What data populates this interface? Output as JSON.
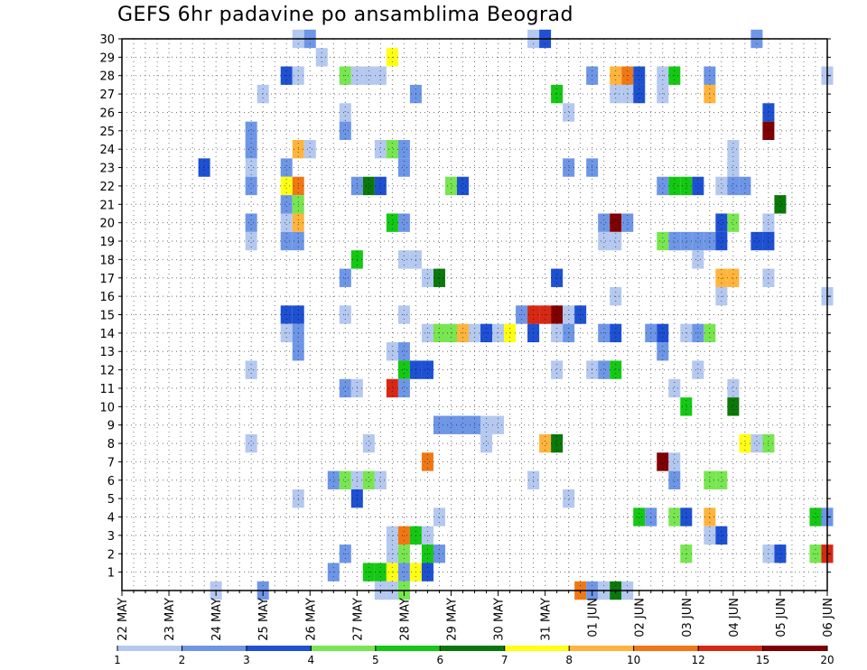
{
  "chart_data": {
    "type": "heatmap",
    "title": "GEFS 6hr padavine po ansamblima Beograd",
    "x_tick_labels": [
      "22 MAY",
      "23 MAY",
      "24 MAY",
      "25 MAY",
      "26 MAY",
      "27 MAY",
      "28 MAY",
      "29 MAY",
      "30 MAY",
      "31 MAY",
      "01 JUN",
      "02 JUN",
      "03 JUN",
      "04 JUN",
      "05 JUN",
      "06 JUN"
    ],
    "y_tick_labels": [
      "1",
      "2",
      "3",
      "4",
      "5",
      "6",
      "7",
      "8",
      "9",
      "10",
      "11",
      "12",
      "13",
      "14",
      "15",
      "16",
      "17",
      "18",
      "19",
      "20",
      "21",
      "22",
      "23",
      "24",
      "25",
      "26",
      "27",
      "28",
      "29",
      "30"
    ],
    "xlim_steps": [
      0,
      60
    ],
    "ylim_members": [
      0,
      30
    ],
    "x_unit": "6-hour step from 22 MAY 00Z",
    "grid": "dotted",
    "colorbar": {
      "boundaries": [
        "1",
        "2",
        "3",
        "4",
        "5",
        "6",
        "7",
        "8",
        "10",
        "12",
        "15",
        "20"
      ],
      "colors": [
        "#b4c8f0",
        "#6e96e6",
        "#1e50d2",
        "#78e650",
        "#14c814",
        "#0a780a",
        "#ffff14",
        "#ffb43c",
        "#f07814",
        "#d72814",
        "#800000"
      ]
    },
    "cells_note": "each cell = [step, member, color class 1..11]",
    "cells": [
      [
        15,
        30,
        1
      ],
      [
        16,
        30,
        2
      ],
      [
        35,
        30,
        1
      ],
      [
        36,
        30,
        3
      ],
      [
        54,
        30,
        2
      ],
      [
        17,
        29,
        1
      ],
      [
        23,
        29,
        7
      ],
      [
        14,
        28,
        3
      ],
      [
        15,
        28,
        1
      ],
      [
        19,
        28,
        4
      ],
      [
        20,
        28,
        1
      ],
      [
        21,
        28,
        1
      ],
      [
        22,
        28,
        1
      ],
      [
        40,
        28,
        2
      ],
      [
        42,
        28,
        8
      ],
      [
        43,
        28,
        9
      ],
      [
        44,
        28,
        3
      ],
      [
        46,
        28,
        1
      ],
      [
        47,
        28,
        5
      ],
      [
        50,
        28,
        2
      ],
      [
        60,
        28,
        1
      ],
      [
        12,
        27,
        1
      ],
      [
        25,
        27,
        2
      ],
      [
        37,
        27,
        5
      ],
      [
        42,
        27,
        1
      ],
      [
        43,
        27,
        1
      ],
      [
        44,
        27,
        3
      ],
      [
        46,
        27,
        1
      ],
      [
        50,
        27,
        8
      ],
      [
        19,
        26,
        1
      ],
      [
        38,
        26,
        1
      ],
      [
        55,
        26,
        3
      ],
      [
        11,
        25,
        2
      ],
      [
        19,
        25,
        2
      ],
      [
        55,
        25,
        11
      ],
      [
        11,
        24,
        2
      ],
      [
        15,
        24,
        8
      ],
      [
        16,
        24,
        1
      ],
      [
        22,
        24,
        1
      ],
      [
        23,
        24,
        4
      ],
      [
        24,
        24,
        2
      ],
      [
        52,
        24,
        1
      ],
      [
        38,
        23,
        2
      ],
      [
        52,
        23,
        1
      ],
      [
        7,
        23,
        3
      ],
      [
        11,
        23,
        1
      ],
      [
        14,
        23,
        2
      ],
      [
        24,
        23,
        2
      ],
      [
        40,
        23,
        2
      ],
      [
        52,
        23,
        1
      ],
      [
        11,
        22,
        2
      ],
      [
        14,
        22,
        7
      ],
      [
        15,
        22,
        9
      ],
      [
        20,
        22,
        2
      ],
      [
        21,
        22,
        6
      ],
      [
        22,
        22,
        3
      ],
      [
        28,
        22,
        4
      ],
      [
        29,
        22,
        3
      ],
      [
        46,
        22,
        2
      ],
      [
        47,
        22,
        5
      ],
      [
        48,
        22,
        5
      ],
      [
        49,
        22,
        3
      ],
      [
        51,
        22,
        1
      ],
      [
        52,
        22,
        2
      ],
      [
        53,
        22,
        2
      ],
      [
        14,
        21,
        2
      ],
      [
        15,
        21,
        4
      ],
      [
        56,
        21,
        6
      ],
      [
        11,
        20,
        2
      ],
      [
        14,
        20,
        1
      ],
      [
        15,
        20,
        8
      ],
      [
        23,
        20,
        5
      ],
      [
        24,
        20,
        2
      ],
      [
        41,
        20,
        2
      ],
      [
        42,
        20,
        11
      ],
      [
        43,
        20,
        2
      ],
      [
        51,
        20,
        3
      ],
      [
        52,
        20,
        4
      ],
      [
        55,
        20,
        1
      ],
      [
        11,
        19,
        1
      ],
      [
        14,
        19,
        2
      ],
      [
        15,
        19,
        2
      ],
      [
        41,
        19,
        1
      ],
      [
        42,
        19,
        1
      ],
      [
        46,
        19,
        4
      ],
      [
        47,
        19,
        2
      ],
      [
        48,
        19,
        2
      ],
      [
        49,
        19,
        2
      ],
      [
        50,
        19,
        2
      ],
      [
        51,
        19,
        3
      ],
      [
        54,
        19,
        3
      ],
      [
        55,
        19,
        3
      ],
      [
        20,
        18,
        5
      ],
      [
        49,
        18,
        1
      ],
      [
        24,
        18,
        1
      ],
      [
        25,
        18,
        1
      ],
      [
        19,
        17,
        2
      ],
      [
        26,
        17,
        1
      ],
      [
        27,
        17,
        6
      ],
      [
        37,
        17,
        3
      ],
      [
        51,
        17,
        8
      ],
      [
        52,
        17,
        8
      ],
      [
        55,
        17,
        1
      ],
      [
        42,
        16,
        1
      ],
      [
        51,
        16,
        1
      ],
      [
        60,
        16,
        1
      ],
      [
        14,
        15,
        3
      ],
      [
        15,
        15,
        3
      ],
      [
        19,
        15,
        1
      ],
      [
        24,
        15,
        1
      ],
      [
        34,
        15,
        2
      ],
      [
        35,
        15,
        10
      ],
      [
        36,
        15,
        10
      ],
      [
        37,
        15,
        11
      ],
      [
        38,
        15,
        1
      ],
      [
        39,
        15,
        3
      ],
      [
        14,
        14,
        1
      ],
      [
        15,
        14,
        2
      ],
      [
        26,
        14,
        1
      ],
      [
        27,
        14,
        4
      ],
      [
        28,
        14,
        4
      ],
      [
        29,
        14,
        8
      ],
      [
        30,
        14,
        1
      ],
      [
        31,
        14,
        3
      ],
      [
        32,
        14,
        1
      ],
      [
        33,
        14,
        7
      ],
      [
        35,
        14,
        3
      ],
      [
        37,
        14,
        1
      ],
      [
        38,
        14,
        2
      ],
      [
        41,
        14,
        2
      ],
      [
        42,
        14,
        3
      ],
      [
        45,
        14,
        2
      ],
      [
        46,
        14,
        3
      ],
      [
        48,
        14,
        1
      ],
      [
        49,
        14,
        2
      ],
      [
        50,
        14,
        4
      ],
      [
        15,
        13,
        2
      ],
      [
        23,
        13,
        1
      ],
      [
        24,
        13,
        2
      ],
      [
        46,
        13,
        2
      ],
      [
        11,
        12,
        1
      ],
      [
        24,
        12,
        5
      ],
      [
        25,
        12,
        3
      ],
      [
        26,
        12,
        3
      ],
      [
        37,
        12,
        1
      ],
      [
        40,
        12,
        1
      ],
      [
        41,
        12,
        2
      ],
      [
        42,
        12,
        5
      ],
      [
        49,
        12,
        1
      ],
      [
        19,
        11,
        2
      ],
      [
        20,
        11,
        1
      ],
      [
        23,
        11,
        10
      ],
      [
        24,
        11,
        2
      ],
      [
        47,
        11,
        1
      ],
      [
        52,
        11,
        1
      ],
      [
        48,
        10,
        5
      ],
      [
        52,
        10,
        6
      ],
      [
        27,
        9,
        2
      ],
      [
        28,
        9,
        2
      ],
      [
        29,
        9,
        2
      ],
      [
        30,
        9,
        2
      ],
      [
        31,
        9,
        1
      ],
      [
        32,
        9,
        1
      ],
      [
        11,
        8,
        1
      ],
      [
        21,
        8,
        1
      ],
      [
        31,
        8,
        1
      ],
      [
        36,
        8,
        8
      ],
      [
        37,
        8,
        6
      ],
      [
        53,
        8,
        7
      ],
      [
        54,
        8,
        1
      ],
      [
        55,
        8,
        4
      ],
      [
        26,
        7,
        9
      ],
      [
        46,
        7,
        11
      ],
      [
        47,
        7,
        1
      ],
      [
        18,
        6,
        2
      ],
      [
        19,
        6,
        4
      ],
      [
        20,
        6,
        1
      ],
      [
        21,
        6,
        4
      ],
      [
        22,
        6,
        1
      ],
      [
        35,
        6,
        1
      ],
      [
        47,
        6,
        2
      ],
      [
        50,
        6,
        4
      ],
      [
        51,
        6,
        4
      ],
      [
        15,
        5,
        1
      ],
      [
        20,
        5,
        3
      ],
      [
        38,
        5,
        1
      ],
      [
        27,
        4,
        1
      ],
      [
        44,
        4,
        5
      ],
      [
        45,
        4,
        2
      ],
      [
        47,
        4,
        4
      ],
      [
        48,
        4,
        3
      ],
      [
        50,
        4,
        8
      ],
      [
        59,
        4,
        5
      ],
      [
        60,
        4,
        2
      ],
      [
        23,
        3,
        1
      ],
      [
        24,
        3,
        9
      ],
      [
        25,
        3,
        5
      ],
      [
        26,
        3,
        1
      ],
      [
        50,
        3,
        1
      ],
      [
        51,
        3,
        3
      ],
      [
        19,
        2,
        2
      ],
      [
        23,
        2,
        1
      ],
      [
        24,
        2,
        4
      ],
      [
        26,
        2,
        5
      ],
      [
        27,
        2,
        2
      ],
      [
        48,
        2,
        4
      ],
      [
        55,
        2,
        1
      ],
      [
        56,
        2,
        3
      ],
      [
        59,
        2,
        4
      ],
      [
        60,
        2,
        10
      ],
      [
        18,
        1,
        2
      ],
      [
        21,
        1,
        5
      ],
      [
        22,
        1,
        5
      ],
      [
        23,
        1,
        7
      ],
      [
        24,
        1,
        2
      ],
      [
        25,
        1,
        7
      ],
      [
        26,
        1,
        3
      ],
      [
        8,
        0,
        1
      ],
      [
        12,
        0,
        2
      ],
      [
        22,
        0,
        1
      ],
      [
        23,
        0,
        1
      ],
      [
        24,
        0,
        4
      ],
      [
        39,
        0,
        9
      ],
      [
        40,
        0,
        2
      ],
      [
        41,
        0,
        1
      ],
      [
        42,
        0,
        6
      ],
      [
        43,
        0,
        1
      ]
    ]
  }
}
